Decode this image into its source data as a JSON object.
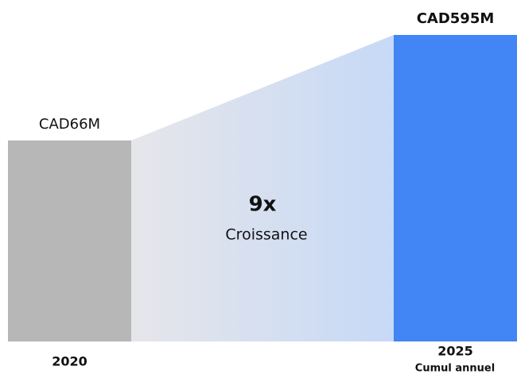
{
  "chart_data": {
    "type": "bar",
    "categories": [
      "2020",
      "2025"
    ],
    "values": [
      66,
      595
    ],
    "value_labels": [
      "CAD66M",
      "CAD595M"
    ],
    "colors": [
      "#b7b7b7",
      "#4285f4"
    ],
    "log_scale": true,
    "ylim": [
      1,
      595
    ],
    "annotations": {
      "growth": "9x",
      "growth_label": "Croissance",
      "period_note": "Cumul annuel"
    }
  }
}
